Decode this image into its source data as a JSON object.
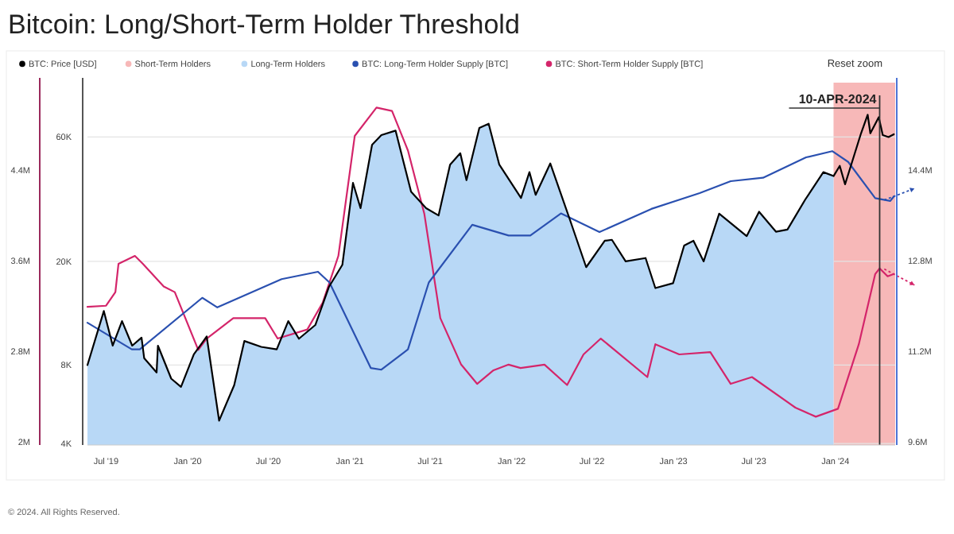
{
  "chart_data": {
    "type": "line",
    "title": "Bitcoin: Long/Short-Term Holder Threshold",
    "legend": "top",
    "grid": "y",
    "log": "y",
    "xlim": [
      "2019-05-20",
      "2024-05-15"
    ],
    "xticks": [
      {
        "value": "2019-07-01",
        "label": "Jul '19"
      },
      {
        "value": "2020-01-01",
        "label": "Jan '20"
      },
      {
        "value": "2020-07-01",
        "label": "Jul '20"
      },
      {
        "value": "2021-01-01",
        "label": "Jan '21"
      },
      {
        "value": "2021-07-01",
        "label": "Jul '21"
      },
      {
        "value": "2022-01-01",
        "label": "Jan '22"
      },
      {
        "value": "2022-07-01",
        "label": "Jul '22"
      },
      {
        "value": "2023-01-01",
        "label": "Jan '23"
      },
      {
        "value": "2023-07-01",
        "label": "Jul '23"
      },
      {
        "value": "2024-01-01",
        "label": "Jan '24"
      }
    ],
    "ylim": [
      3950,
      97000
    ],
    "yticks": [
      {
        "value": 4000,
        "label": "4K"
      },
      {
        "value": 8000,
        "label": "8K"
      },
      {
        "value": 20000,
        "label": "20K"
      },
      {
        "value": 60000,
        "label": "60K"
      }
    ],
    "y2lim": [
      9540000,
      15940000
    ],
    "y2ticks": [
      {
        "value": 9600000,
        "label": "9.6M"
      },
      {
        "value": 11200000,
        "label": "11.2M"
      },
      {
        "value": 12800000,
        "label": "12.8M"
      },
      {
        "value": 14400000,
        "label": "14.4M"
      }
    ],
    "y3lim": [
      1970000,
      5170000
    ],
    "y3ticks": [
      {
        "value": 2000000,
        "label": "2M"
      },
      {
        "value": 2800000,
        "label": "2.8M"
      },
      {
        "value": 3600000,
        "label": "3.6M"
      },
      {
        "value": 4400000,
        "label": "4.4M"
      }
    ],
    "series": [
      {
        "name": "BTC: Price [USD]",
        "color": "#000000",
        "x": [
          "2019-05-20",
          "2019-06-26",
          "2019-07-16",
          "2019-08-06",
          "2019-08-29",
          "2019-09-19",
          "2019-09-25",
          "2019-10-23",
          "2019-10-26",
          "2019-11-25",
          "2019-12-17",
          "2020-01-15",
          "2020-02-13",
          "2020-03-12",
          "2020-04-15",
          "2020-05-08",
          "2020-06-15",
          "2020-07-20",
          "2020-08-15",
          "2020-09-08",
          "2020-10-15",
          "2020-11-15",
          "2020-12-15",
          "2021-01-08",
          "2021-01-25",
          "2021-02-20",
          "2021-03-13",
          "2021-04-14",
          "2021-05-19",
          "2021-06-22",
          "2021-07-20",
          "2021-08-15",
          "2021-09-07",
          "2021-09-21",
          "2021-10-20",
          "2021-11-10",
          "2021-12-04",
          "2022-01-22",
          "2022-02-10",
          "2022-02-24",
          "2022-03-29",
          "2022-05-12",
          "2022-06-18",
          "2022-07-30",
          "2022-08-15",
          "2022-09-15",
          "2022-10-30",
          "2022-11-21",
          "2022-12-31",
          "2023-01-25",
          "2023-02-15",
          "2023-03-10",
          "2023-04-14",
          "2023-06-15",
          "2023-07-13",
          "2023-08-20",
          "2023-09-15",
          "2023-10-25",
          "2023-12-05",
          "2023-12-28",
          "2024-01-11",
          "2024-01-23",
          "2024-02-28",
          "2024-03-14",
          "2024-03-20",
          "2024-04-08",
          "2024-04-17",
          "2024-04-30",
          "2024-05-12"
        ],
        "values": [
          8000,
          12900,
          9500,
          11800,
          9500,
          10200,
          8500,
          7500,
          9500,
          7100,
          6600,
          8800,
          10300,
          4900,
          6700,
          9900,
          9400,
          9200,
          11800,
          10100,
          11400,
          16000,
          19400,
          40000,
          32000,
          56000,
          61000,
          63500,
          37000,
          32000,
          30000,
          47000,
          52000,
          41000,
          65000,
          67500,
          47000,
          35000,
          44000,
          36000,
          47500,
          29000,
          19000,
          24000,
          24200,
          20000,
          20600,
          15800,
          16500,
          23000,
          24000,
          20000,
          30500,
          25000,
          31000,
          26000,
          26500,
          34500,
          44000,
          42500,
          46500,
          39500,
          62000,
          73000,
          62000,
          71500,
          61000,
          60000,
          61500
        ]
      },
      {
        "name": "Long-Term Holders",
        "type": "area",
        "color": "#b8d8f6",
        "x": [
          "2019-05-20",
          "2019-06-26",
          "2019-07-16",
          "2019-08-06",
          "2019-08-29",
          "2019-09-19",
          "2019-09-25",
          "2019-10-23",
          "2019-10-26",
          "2019-11-25",
          "2019-12-17",
          "2020-01-15",
          "2020-02-13",
          "2020-03-12",
          "2020-04-15",
          "2020-05-08",
          "2020-06-15",
          "2020-07-20",
          "2020-08-15",
          "2020-09-08",
          "2020-10-15",
          "2020-11-15",
          "2020-12-15",
          "2021-01-08",
          "2021-01-25",
          "2021-02-20",
          "2021-03-13",
          "2021-04-14",
          "2021-05-19",
          "2021-06-22",
          "2021-07-20",
          "2021-08-15",
          "2021-09-07",
          "2021-09-21",
          "2021-10-20",
          "2021-11-10",
          "2021-12-04",
          "2022-01-22",
          "2022-02-10",
          "2022-02-24",
          "2022-03-29",
          "2022-05-12",
          "2022-06-18",
          "2022-07-30",
          "2022-08-15",
          "2022-09-15",
          "2022-10-30",
          "2022-11-21",
          "2022-12-31",
          "2023-01-25",
          "2023-02-15",
          "2023-03-10",
          "2023-04-14",
          "2023-06-15",
          "2023-07-13",
          "2023-08-20",
          "2023-09-15",
          "2023-10-25",
          "2023-12-05",
          "2023-12-28"
        ],
        "values": [
          8000,
          12900,
          9500,
          11800,
          9500,
          10200,
          8500,
          7500,
          9500,
          7100,
          6600,
          8800,
          10300,
          4900,
          6700,
          9900,
          9400,
          9200,
          11800,
          10100,
          11400,
          16000,
          19400,
          40000,
          32000,
          56000,
          61000,
          63500,
          37000,
          32000,
          30000,
          47000,
          52000,
          41000,
          65000,
          67500,
          47000,
          35000,
          44000,
          36000,
          47500,
          29000,
          19000,
          24000,
          24200,
          20000,
          20600,
          15800,
          16500,
          23000,
          24000,
          20000,
          30500,
          25000,
          31000,
          26000,
          26500,
          34500,
          44000,
          42500
        ]
      },
      {
        "name": "BTC: Long-Term Holder Supply [BTC]",
        "type": "line",
        "axis": "y2",
        "color": "#2a50b0",
        "x": [
          "2019-05-20",
          "2019-08-28",
          "2019-09-15",
          "2020-02-03",
          "2020-03-08",
          "2020-07-31",
          "2020-10-21",
          "2020-11-16",
          "2021-02-17",
          "2021-03-13",
          "2021-05-12",
          "2021-06-28",
          "2021-10-04",
          "2021-12-25",
          "2022-02-12",
          "2022-04-22",
          "2022-07-18",
          "2022-11-12",
          "2023-03-01",
          "2023-05-10",
          "2023-07-22",
          "2023-10-27",
          "2023-12-25",
          "2024-01-30",
          "2024-03-31",
          "2024-05-04",
          "2024-05-12"
        ],
        "values": [
          11700000,
          11230000,
          11230000,
          12140000,
          11970000,
          12470000,
          12600000,
          12410000,
          10900000,
          10870000,
          11230000,
          12410000,
          13430000,
          13240000,
          13240000,
          13630000,
          13300000,
          13710000,
          13990000,
          14200000,
          14260000,
          14620000,
          14730000,
          14540000,
          13900000,
          13850000,
          13930000
        ]
      },
      {
        "name": "BTC: Short-Term Holder Supply [BTC]",
        "type": "line",
        "axis": "y3",
        "color": "#d4256a",
        "x": [
          "2019-05-20",
          "2019-07-01",
          "2019-07-22",
          "2019-07-29",
          "2019-09-04",
          "2019-09-22",
          "2019-11-08",
          "2019-12-03",
          "2020-01-25",
          "2020-02-13",
          "2020-04-13",
          "2020-06-24",
          "2020-07-22",
          "2020-09-27",
          "2020-11-01",
          "2020-12-06",
          "2021-01-12",
          "2021-03-02",
          "2021-04-06",
          "2021-05-12",
          "2021-06-18",
          "2021-07-24",
          "2021-09-09",
          "2021-10-15",
          "2021-11-21",
          "2021-12-25",
          "2022-01-21",
          "2022-03-16",
          "2022-05-06",
          "2022-06-12",
          "2022-07-21",
          "2022-11-03",
          "2022-11-21",
          "2023-01-14",
          "2023-03-25",
          "2023-05-10",
          "2023-06-27",
          "2023-10-03",
          "2023-11-18",
          "2024-01-07",
          "2024-02-23",
          "2024-03-31",
          "2024-04-10",
          "2024-04-28",
          "2024-05-12"
        ],
        "values": [
          3190000,
          3200000,
          3320000,
          3570000,
          3640000,
          3570000,
          3370000,
          3320000,
          2810000,
          2910000,
          3090000,
          3090000,
          2910000,
          2990000,
          3230000,
          3640000,
          4700000,
          4950000,
          4920000,
          4570000,
          4010000,
          3090000,
          2680000,
          2510000,
          2630000,
          2680000,
          2650000,
          2680000,
          2500000,
          2770000,
          2910000,
          2570000,
          2860000,
          2770000,
          2790000,
          2510000,
          2570000,
          2300000,
          2220000,
          2290000,
          2860000,
          3480000,
          3530000,
          3460000,
          3480000
        ]
      }
    ],
    "bands": [
      {
        "axis": "x",
        "from": "2023-12-28",
        "to": "2024-05-15",
        "label": "Short-Term Holders",
        "color": "#f7b8b8"
      }
    ],
    "ref_lines": [
      {
        "axis": "x",
        "value": "2024-04-10",
        "label": "10-APR-2024",
        "color": "#333333"
      }
    ],
    "annotations": [
      "Reset zoom",
      "© 2024. All Rights Reserved."
    ]
  }
}
